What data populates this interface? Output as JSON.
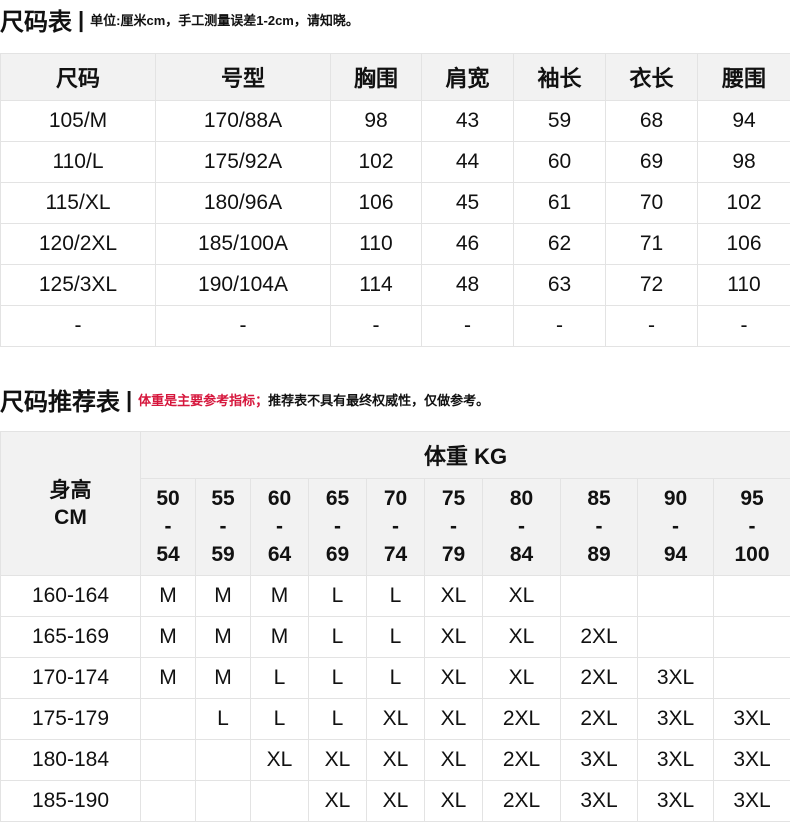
{
  "size_table": {
    "title": "尺码表",
    "note": "单位:厘米cm，手工测量误差1-2cm，请知晓。",
    "headers": [
      "尺码",
      "号型",
      "胸围",
      "肩宽",
      "袖长",
      "衣长",
      "腰围"
    ],
    "rows": [
      [
        "105/M",
        "170/88A",
        "98",
        "43",
        "59",
        "68",
        "94"
      ],
      [
        "110/L",
        "175/92A",
        "102",
        "44",
        "60",
        "69",
        "98"
      ],
      [
        "115/XL",
        "180/96A",
        "106",
        "45",
        "61",
        "70",
        "102"
      ],
      [
        "120/2XL",
        "185/100A",
        "110",
        "46",
        "62",
        "71",
        "106"
      ],
      [
        "125/3XL",
        "190/104A",
        "114",
        "48",
        "63",
        "72",
        "110"
      ],
      [
        "-",
        "-",
        "-",
        "-",
        "-",
        "-",
        "-"
      ]
    ]
  },
  "rec_table": {
    "title": "尺码推荐表",
    "note_red": "体重是主要参考指标；",
    "note": "推荐表不具有最终权威性，仅做参考。",
    "height_header": "身高",
    "height_unit": "CM",
    "weight_header": "体重 KG",
    "weight_ranges": [
      [
        "50",
        "54"
      ],
      [
        "55",
        "59"
      ],
      [
        "60",
        "64"
      ],
      [
        "65",
        "69"
      ],
      [
        "70",
        "74"
      ],
      [
        "75",
        "79"
      ],
      [
        "80",
        "84"
      ],
      [
        "85",
        "89"
      ],
      [
        "90",
        "94"
      ],
      [
        "95",
        "100"
      ]
    ],
    "rows": [
      [
        "160-164",
        "M",
        "M",
        "M",
        "L",
        "L",
        "XL",
        "XL",
        "",
        "",
        ""
      ],
      [
        "165-169",
        "M",
        "M",
        "M",
        "L",
        "L",
        "XL",
        "XL",
        "2XL",
        "",
        ""
      ],
      [
        "170-174",
        "M",
        "M",
        "L",
        "L",
        "L",
        "XL",
        "XL",
        "2XL",
        "3XL",
        ""
      ],
      [
        "175-179",
        "",
        "L",
        "L",
        "L",
        "XL",
        "XL",
        "2XL",
        "2XL",
        "3XL",
        "3XL"
      ],
      [
        "180-184",
        "",
        "",
        "XL",
        "XL",
        "XL",
        "XL",
        "2XL",
        "3XL",
        "3XL",
        "3XL"
      ],
      [
        "185-190",
        "",
        "",
        "",
        "XL",
        "XL",
        "XL",
        "2XL",
        "3XL",
        "3XL",
        "3XL"
      ]
    ]
  }
}
